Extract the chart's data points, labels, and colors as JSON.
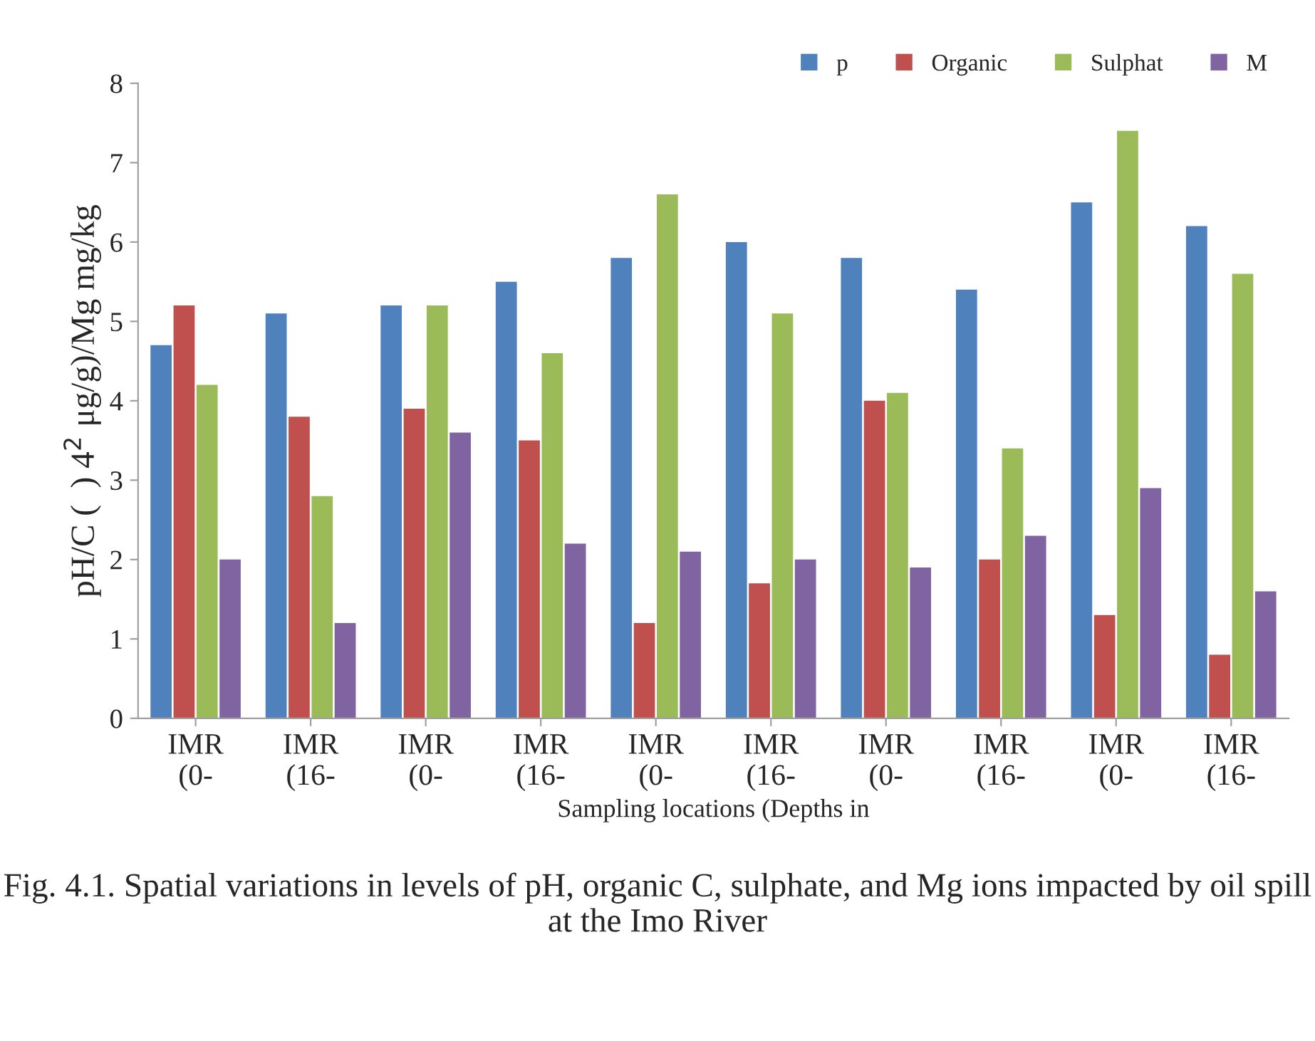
{
  "chart_data": {
    "type": "bar",
    "categories": [
      "IMR\n(0-",
      "IMR\n(16-",
      "IMR\n(0-",
      "IMR\n(16-",
      "IMR\n(0-",
      "IMR\n(16-",
      "IMR\n(0-",
      "IMR\n(16-",
      "IMR\n(0-",
      "IMR\n(16-"
    ],
    "series": [
      {
        "name": "p",
        "color": "#4f81bd",
        "values": [
          4.7,
          5.1,
          5.2,
          5.5,
          5.8,
          6.0,
          5.8,
          5.4,
          6.5,
          6.2
        ]
      },
      {
        "name": "Organic",
        "color": "#c0504d",
        "values": [
          5.2,
          3.8,
          3.9,
          3.5,
          1.2,
          1.7,
          4.0,
          2.0,
          1.3,
          0.8
        ]
      },
      {
        "name": "Sulphat",
        "color": "#9bbb59",
        "values": [
          4.2,
          2.8,
          5.2,
          4.6,
          6.6,
          5.1,
          4.1,
          3.4,
          7.4,
          5.6
        ]
      },
      {
        "name": "M",
        "color": "#8064a2",
        "values": [
          2.0,
          1.2,
          3.6,
          2.2,
          2.1,
          2.0,
          1.9,
          2.3,
          2.9,
          1.6
        ]
      }
    ],
    "xlabel": "Sampling locations (Depths in",
    "ylabel": "pH/C (  ) 4$^{2}$ μg/g)/Mg mg/kg",
    "ylim": [
      0,
      8
    ],
    "yticks": [
      0,
      1,
      2,
      3,
      4,
      5,
      6,
      7,
      8
    ],
    "grid": false,
    "legend": "top right",
    "annotations": [
      "Fig. 4.1. Spatial variations in levels of pH, organic C, sulphate, and Mg ions impacted by oil spill at the Imo River"
    ]
  }
}
